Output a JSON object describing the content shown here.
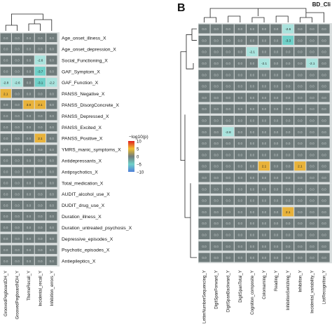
{
  "panel_b": {
    "letter": "B",
    "title": "BD_Cli"
  },
  "legend": {
    "title": "−log10(p)",
    "ticks": [
      "10",
      "5",
      "0",
      "−5",
      "−10"
    ]
  },
  "colors": {
    "cell": "#6f7b7b",
    "band": "#d9dede",
    "pos": "#e8b23a",
    "neg": "#6fd0c8",
    "negLight": "#a9e3dd",
    "dendro": "#222222",
    "text": "#111111"
  },
  "chart_data": [
    {
      "type": "heatmap",
      "title": "",
      "rows": [
        "Age_onset_illness_X",
        "Age_onset_depression_X",
        "Social_Functioning_X",
        "GAF_Symptom_X",
        "GAF_Function_X",
        "PANSS_Negative_X",
        "PANSS_DisorgConcrete_X",
        "PANSS_Depressed_X",
        "PANSS_Excited_X",
        "PANSS_Positive_X",
        "YMRS_manic_symptoms_X",
        "Antidepressants_X",
        "Antipsychotics_X",
        "Total_medication_X",
        "AUDIT_alcohol_use_X",
        "DUDIT_drug_use_X",
        "Duration_illness_X",
        "Duration_untreated_psychosis_X",
        "Depressive_episodes_X",
        "Psychotic_episodes_X",
        "Antiepileptics_X"
      ],
      "columns": [
        "GroovedPegboardDH_Y",
        "GroovedPegboardNDH_Y",
        "ThemeRecall_Y",
        "Incidental_recall_Y",
        "Inhibition_errors_Y"
      ],
      "values": [
        [
          0.0,
          0.0,
          0.0,
          0.0,
          0.0
        ],
        [
          0.0,
          0.0,
          0.0,
          0.0,
          0.0
        ],
        [
          0.0,
          0.0,
          0.0,
          -2.6,
          0.0
        ],
        [
          0.0,
          0.0,
          0.0,
          -3.7,
          0.0
        ],
        [
          -2.8,
          -2.6,
          0.0,
          -3.1,
          -2.2
        ],
        [
          2.1,
          0.0,
          0.0,
          0.0,
          0.0
        ],
        [
          0.0,
          0.0,
          3.0,
          2.1,
          0.0
        ],
        [
          0.0,
          0.0,
          0.0,
          0.0,
          0.0
        ],
        [
          0.0,
          0.0,
          0.0,
          0.0,
          0.0
        ],
        [
          0.0,
          0.0,
          0.0,
          2.1,
          0.0
        ],
        [
          0.0,
          0.0,
          0.0,
          0.0,
          0.0
        ],
        [
          0.0,
          0.0,
          0.0,
          0.0,
          0.0
        ],
        [
          0.0,
          0.0,
          0.0,
          0.0,
          0.0
        ],
        [
          0.0,
          0.0,
          0.0,
          0.0,
          0.0
        ],
        [
          0.0,
          0.0,
          0.0,
          0.0,
          0.0
        ],
        [
          0.0,
          0.0,
          0.0,
          0.0,
          0.0
        ],
        [
          0.0,
          0.0,
          0.0,
          0.0,
          0.0
        ],
        [
          0.0,
          0.0,
          0.0,
          0.0,
          0.0
        ],
        [
          0.0,
          0.0,
          0.0,
          0.0,
          0.0
        ],
        [
          0.0,
          0.0,
          0.0,
          0.0,
          0.0
        ],
        [
          0.0,
          0.0,
          0.0,
          0.0,
          0.0
        ]
      ],
      "colorbar": {
        "label": "−log10(p)",
        "range": [
          -10,
          10
        ],
        "ticks": [
          10,
          5,
          0,
          -5,
          -10
        ]
      }
    },
    {
      "type": "heatmap",
      "title": "BD_Cli",
      "rows_visible": false,
      "row_count": 21,
      "columns": [
        "LetterNumberSequencing_Y",
        "DigitSpanForward_Y",
        "DigitSpanBackward_Y",
        "DigitSpanTotal_Y",
        "Cognition_composite_Y",
        "Colornaming_Y",
        "Reading_Y",
        "InhibitionSwitching_Y",
        "Inhibition_Y",
        "Incidental_variability_Y",
        "ListRecognition_Y"
      ],
      "values": [
        [
          0.0,
          0.0,
          0.0,
          0.0,
          0.0,
          0.0,
          0.0,
          -2.6,
          0.0,
          0.0,
          0.0
        ],
        [
          0.0,
          0.0,
          0.0,
          0.0,
          0.0,
          0.0,
          0.0,
          -3.3,
          0.0,
          0.0,
          0.0
        ],
        [
          0.0,
          0.0,
          0.0,
          0.0,
          -2.1,
          0.0,
          0.0,
          0.0,
          0.0,
          0.0,
          0.0
        ],
        [
          0.0,
          0.0,
          0.0,
          0.0,
          0.0,
          -2.1,
          0.0,
          0.0,
          0.0,
          -2.1,
          0.0
        ],
        [
          0.0,
          0.0,
          0.0,
          0.0,
          0.0,
          0.0,
          0.0,
          0.0,
          0.0,
          0.0,
          0.0
        ],
        [
          0.0,
          0.0,
          0.0,
          0.0,
          0.0,
          0.0,
          0.0,
          0.0,
          0.0,
          0.0,
          0.0
        ],
        [
          0.0,
          0.0,
          0.0,
          0.0,
          0.0,
          0.0,
          0.0,
          0.0,
          0.0,
          0.0,
          0.0
        ],
        [
          0.0,
          0.0,
          0.0,
          0.0,
          0.0,
          0.0,
          0.0,
          0.0,
          0.0,
          0.0,
          0.0
        ],
        [
          0.0,
          0.0,
          0.0,
          0.0,
          0.0,
          0.0,
          0.0,
          0.0,
          0.0,
          0.0,
          0.0
        ],
        [
          0.0,
          0.0,
          -2.8,
          0.0,
          0.0,
          0.0,
          0.0,
          0.0,
          0.0,
          0.0,
          0.0
        ],
        [
          0.0,
          0.0,
          0.0,
          0.0,
          0.0,
          0.0,
          0.0,
          0.0,
          0.0,
          0.0,
          0.0
        ],
        [
          0.0,
          0.0,
          0.0,
          0.0,
          0.0,
          0.0,
          0.0,
          0.0,
          0.0,
          0.0,
          0.0
        ],
        [
          0.0,
          0.0,
          0.0,
          0.0,
          0.0,
          2.1,
          0.0,
          0.0,
          2.1,
          0.0,
          0.0
        ],
        [
          0.0,
          0.0,
          0.0,
          0.0,
          0.0,
          0.0,
          0.0,
          0.0,
          0.0,
          0.0,
          0.0
        ],
        [
          0.0,
          0.0,
          0.0,
          0.0,
          0.0,
          0.0,
          0.0,
          0.0,
          0.0,
          0.0,
          0.0
        ],
        [
          0.0,
          0.0,
          0.0,
          0.0,
          0.0,
          0.0,
          0.0,
          0.0,
          0.0,
          0.0,
          0.0
        ],
        [
          0.0,
          0.0,
          0.0,
          0.0,
          0.0,
          0.0,
          0.0,
          2.1,
          0.0,
          0.0,
          0.0
        ],
        [
          0.0,
          0.0,
          0.0,
          0.0,
          0.0,
          0.0,
          0.0,
          0.0,
          0.0,
          0.0,
          0.0
        ],
        [
          0.0,
          0.0,
          0.0,
          0.0,
          0.0,
          0.0,
          0.0,
          0.0,
          0.0,
          0.0,
          0.0
        ],
        [
          0.0,
          0.0,
          0.0,
          0.0,
          0.0,
          0.0,
          0.0,
          0.0,
          0.0,
          0.0,
          0.0
        ],
        [
          0.0,
          0.0,
          0.0,
          0.0,
          0.0,
          0.0,
          0.0,
          0.0,
          0.0,
          0.0,
          0.0
        ]
      ]
    }
  ]
}
